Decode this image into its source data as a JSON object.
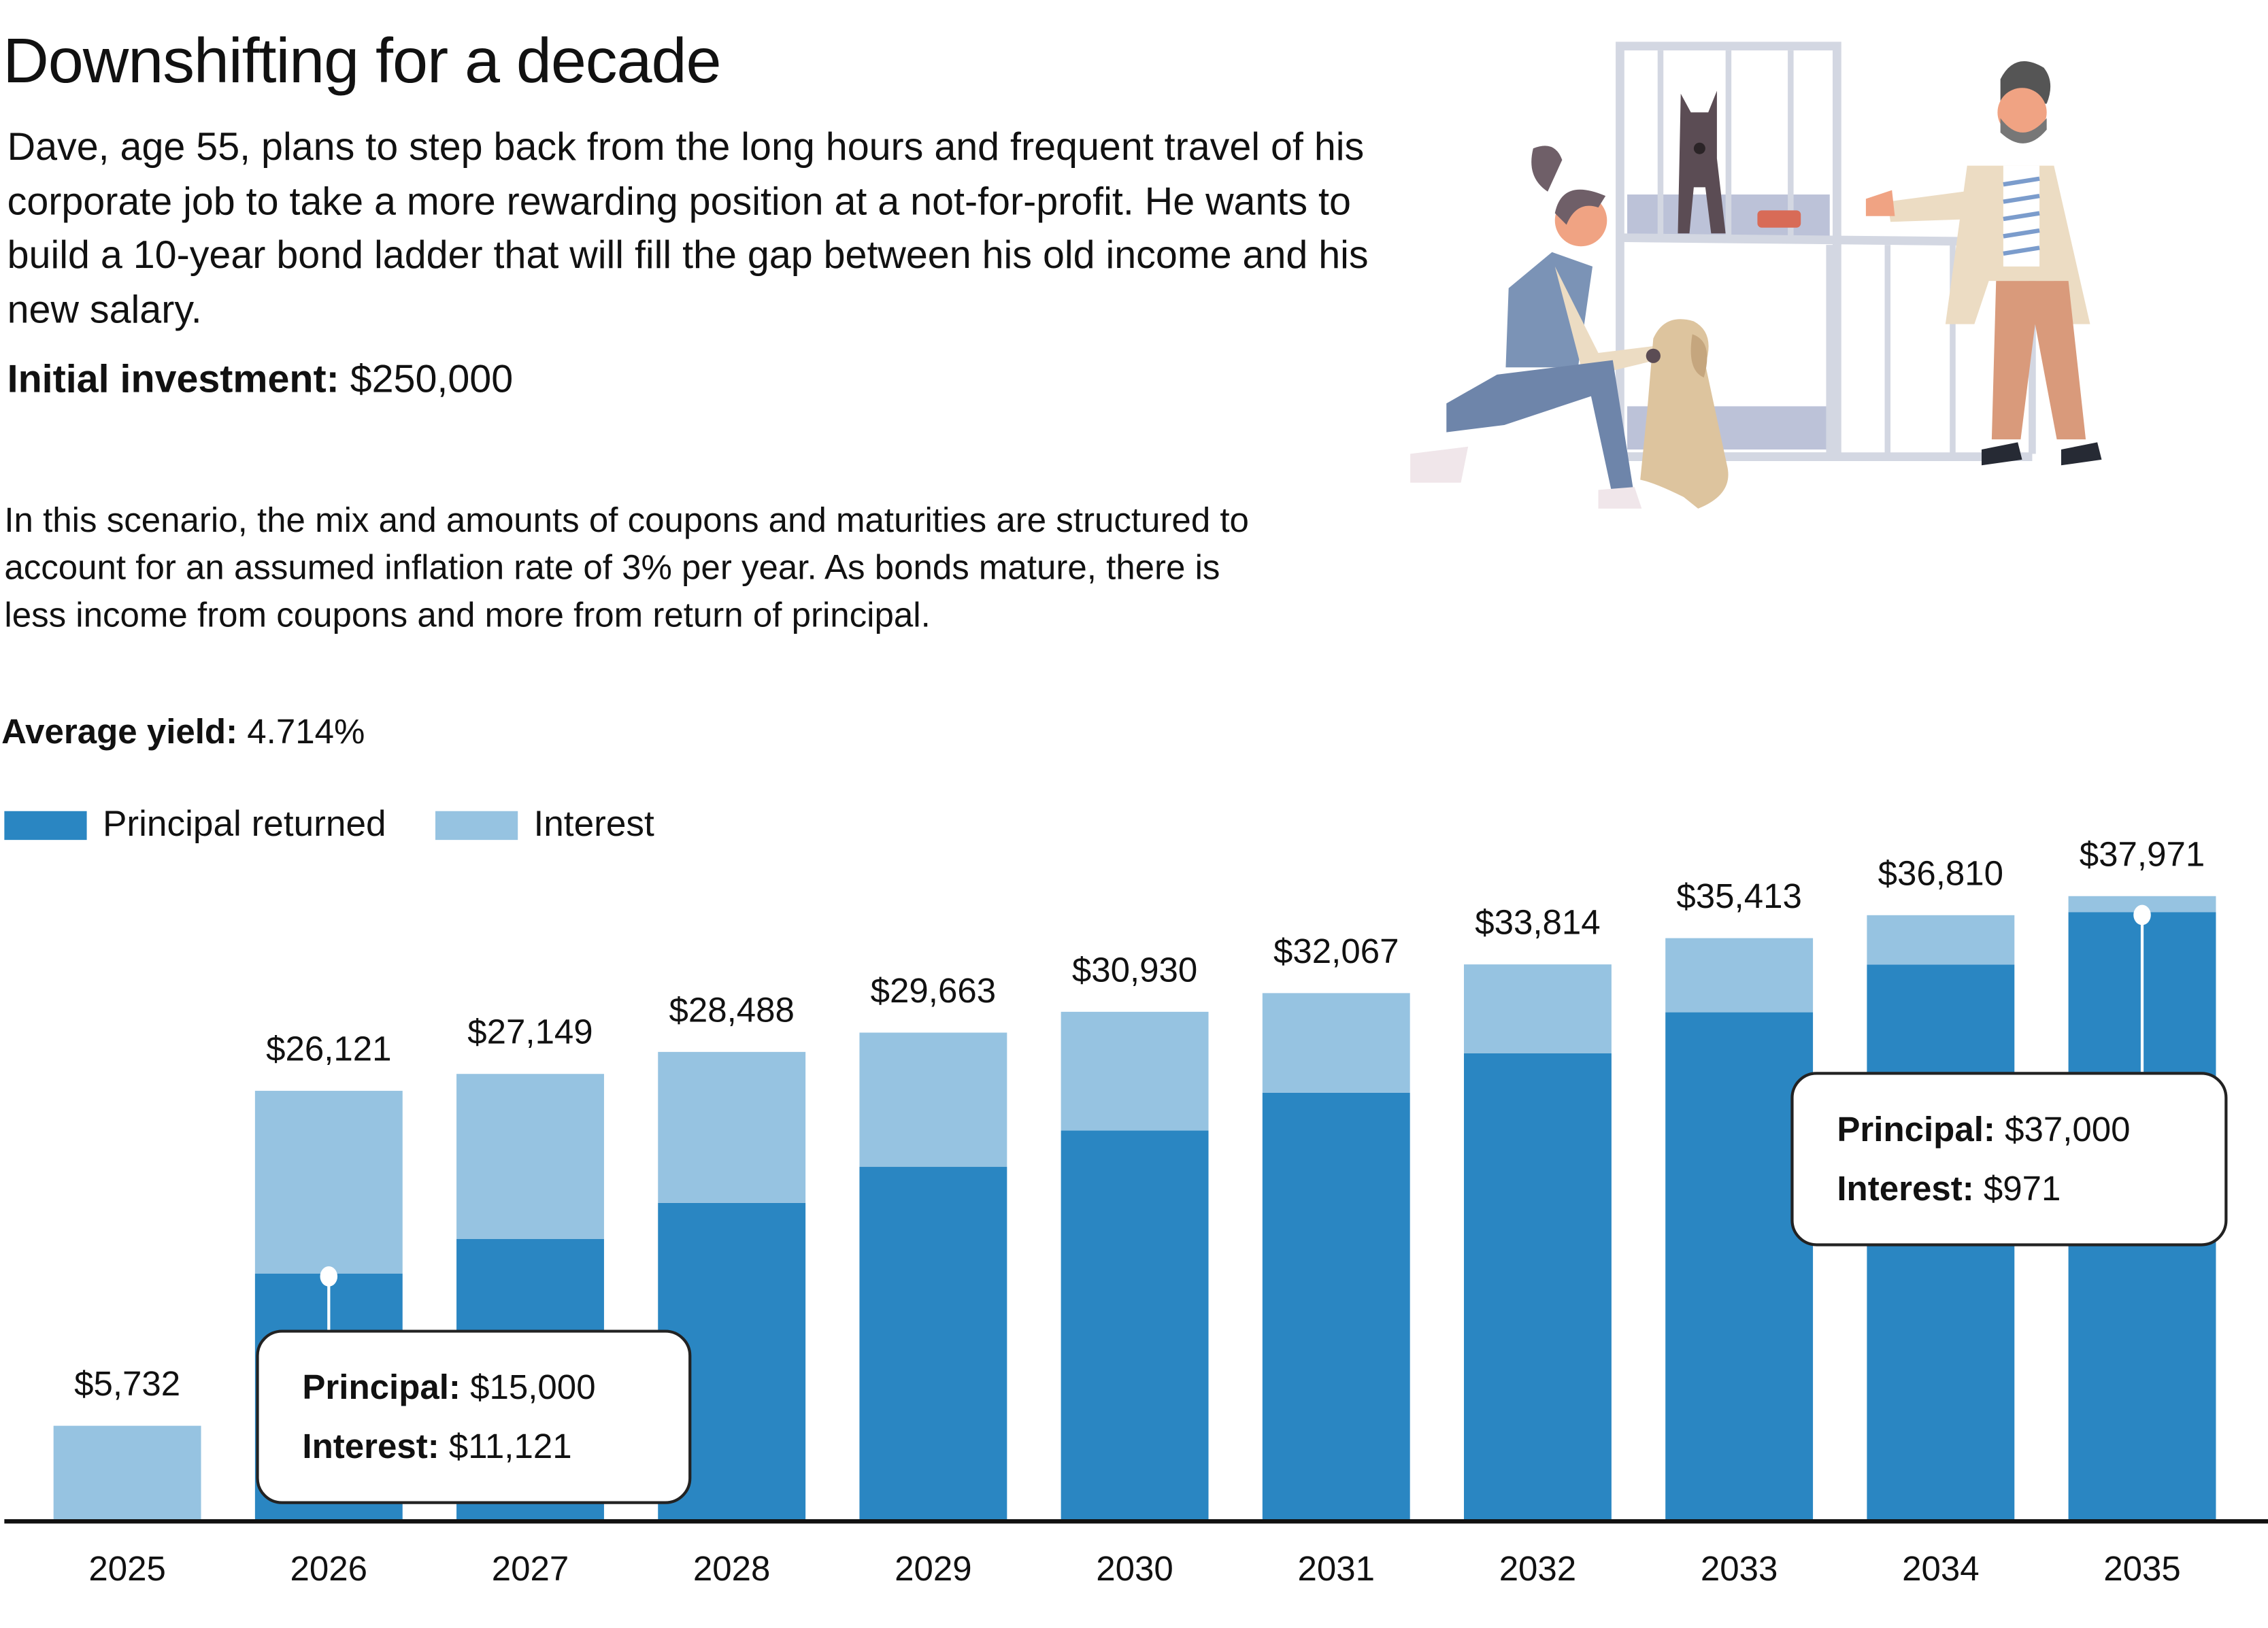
{
  "header": {
    "title": "Downshifting for a decade",
    "intro": "Dave, age 55, plans to step back from the long hours and frequent travel of his corporate job to take a more rewarding position at a not-for-profit. He wants to build a 10-year bond ladder that will fill the gap between his old income and his new salary.",
    "initial_investment_label": "Initial investment:",
    "initial_investment_value": "$250,000",
    "note": "In this scenario, the mix and amounts of coupons and maturities are structured to account for an assumed inflation rate of 3% per year. As bonds mature, there is less income from coupons and more from return of principal.",
    "average_yield_label": "Average yield:",
    "average_yield_value": "4.714%"
  },
  "illustration": {
    "description": "Animal shelter scene: woman kneeling petting a dog, man standing beside kennels with a dog inside",
    "icon": "animal-shelter-illustration"
  },
  "colors": {
    "principal": "#2a86c2",
    "interest": "#96c3e1",
    "axis": "#111111"
  },
  "chart_data": {
    "type": "bar",
    "stacked": true,
    "title": "",
    "xlabel": "",
    "ylabel": "",
    "categories": [
      "2025",
      "2026",
      "2027",
      "2028",
      "2029",
      "2030",
      "2031",
      "2032",
      "2033",
      "2034",
      "2035"
    ],
    "series": [
      {
        "name": "Principal returned",
        "values": [
          0,
          15000,
          17100,
          19300,
          21500,
          23700,
          26000,
          28400,
          30900,
          33800,
          37000
        ]
      },
      {
        "name": "Interest",
        "values": [
          5732,
          11121,
          10049,
          9188,
          8163,
          7230,
          6067,
          5414,
          4513,
          3010,
          971
        ]
      }
    ],
    "totals": [
      5732,
      26121,
      27149,
      28488,
      29663,
      30930,
      32067,
      33814,
      35413,
      36810,
      37971
    ],
    "total_labels": [
      "$5,732",
      "$26,121",
      "$27,149",
      "$28,488",
      "$29,663",
      "$30,930",
      "$32,067",
      "$33,814",
      "$35,413",
      "$36,810",
      "$37,971"
    ],
    "ylim": [
      0,
      37971
    ],
    "grid": false,
    "legend": {
      "placement": "top-left",
      "entries": [
        "Principal returned",
        "Interest"
      ]
    },
    "annotations": [
      {
        "category": "2026",
        "principal_label": "Principal:",
        "principal_value": "$15,000",
        "interest_label": "Interest:",
        "interest_value": "$11,121"
      },
      {
        "category": "2035",
        "principal_label": "Principal:",
        "principal_value": "$37,000",
        "interest_label": "Interest:",
        "interest_value": "$971"
      }
    ]
  }
}
